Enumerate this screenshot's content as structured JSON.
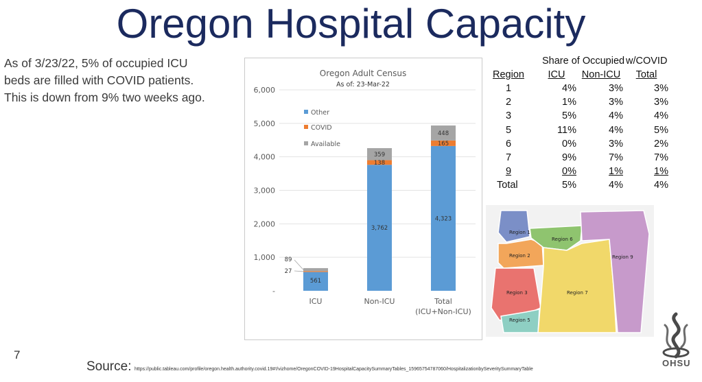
{
  "slide": {
    "title": "Oregon Hospital Capacity",
    "desc_lines": [
      "As of 3/23/22, 5% of occupied ICU",
      "beds are filled with COVID patients.",
      "This is down from 9% two weeks ago."
    ],
    "page_number": "7",
    "source_label": "Source:",
    "source_url": "https://public.tableau.com/profile/oregon.health.authority.covid.19#!/vizhome/OregonCOVID-19HospitalCapacitySummaryTables_15965754787060/HospitalizationbySeveritySummaryTable",
    "logo_text": "OHSU"
  },
  "chart_data": {
    "type": "bar",
    "stacked": true,
    "title": "Oregon Adult Census",
    "subtitle": "As of: 23-Mar-22",
    "categories": [
      "ICU",
      "Non-ICU",
      "Total"
    ],
    "category_sublabels": [
      "",
      "",
      "(ICU+Non-ICU)"
    ],
    "series": [
      {
        "name": "Other",
        "values": [
          561,
          3762,
          4323
        ],
        "color": "#5b9bd5"
      },
      {
        "name": "COVID",
        "values": [
          27,
          138,
          165
        ],
        "color": "#ed7d31"
      },
      {
        "name": "Available",
        "values": [
          89,
          359,
          448
        ],
        "color": "#a5a5a5"
      }
    ],
    "data_labels": [
      [
        "561",
        "27",
        "89"
      ],
      [
        "3,762",
        "138",
        "359"
      ],
      [
        "4,323",
        "165",
        "448"
      ]
    ],
    "ylim": [
      0,
      6000
    ],
    "yticks": [
      0,
      1000,
      2000,
      3000,
      4000,
      5000,
      6000
    ],
    "ytick_labels": [
      "-",
      "1,000",
      "2,000",
      "3,000",
      "4,000",
      "5,000",
      "6,000"
    ],
    "grid": true,
    "legend_position": "top-left"
  },
  "share_table": {
    "header_top_left": "Share of Occupied",
    "header_top_right": "w/COVID",
    "columns": [
      "Region",
      "ICU",
      "Non-ICU",
      "Total"
    ],
    "rows": [
      [
        "1",
        "4%",
        "3%",
        "3%"
      ],
      [
        "2",
        "1%",
        "3%",
        "3%"
      ],
      [
        "3",
        "5%",
        "4%",
        "4%"
      ],
      [
        "5",
        "11%",
        "4%",
        "5%"
      ],
      [
        "6",
        "0%",
        "3%",
        "2%"
      ],
      [
        "7",
        "9%",
        "7%",
        "7%"
      ],
      [
        "9",
        "0%",
        "1%",
        "1%"
      ],
      [
        "Total",
        "5%",
        "4%",
        "4%"
      ]
    ]
  },
  "map": {
    "regions": [
      {
        "label": "Region 1",
        "color": "#7b8fc7"
      },
      {
        "label": "Region 2",
        "color": "#f2a65a"
      },
      {
        "label": "Region 3",
        "color": "#e9736f"
      },
      {
        "label": "Region 5",
        "color": "#8ecfc3"
      },
      {
        "label": "Region 6",
        "color": "#8fc46f"
      },
      {
        "label": "Region 7",
        "color": "#f1d86a"
      },
      {
        "label": "Region 9",
        "color": "#c79acb"
      }
    ]
  }
}
